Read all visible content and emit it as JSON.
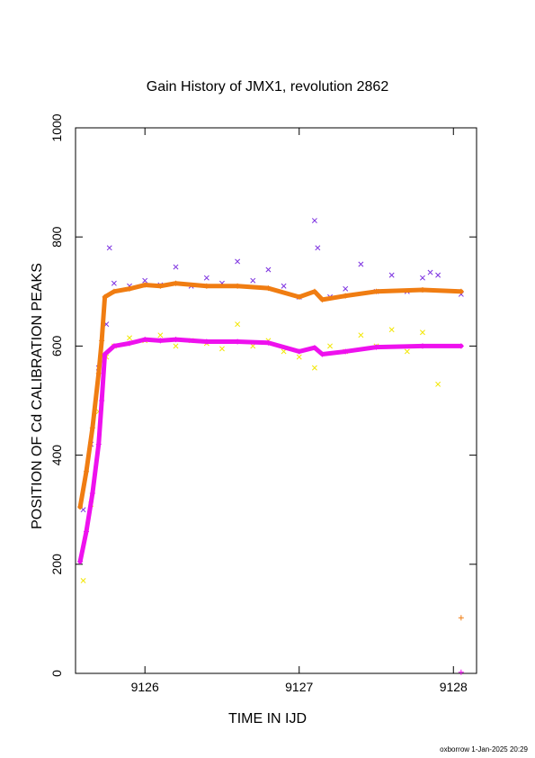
{
  "chart_data": {
    "type": "scatter",
    "title": "Gain History of JMX1, revolution 2862",
    "xlabel": "TIME IN IJD",
    "ylabel": "POSITION OF Cd CALIBRATION PEAKS",
    "xlim": [
      9125.55,
      9128.15
    ],
    "ylim": [
      0,
      1000
    ],
    "xticks": [
      9126,
      9127,
      9128
    ],
    "yticks": [
      0,
      200,
      400,
      600,
      800,
      1000
    ],
    "grid": false,
    "legend": "none",
    "series": [
      {
        "marker": "x",
        "color": "#7b2fe0",
        "points": [
          [
            9125.6,
            300
          ],
          [
            9125.65,
            420
          ],
          [
            9125.7,
            560
          ],
          [
            9125.75,
            640
          ],
          [
            9125.77,
            780
          ],
          [
            9125.8,
            715
          ],
          [
            9125.9,
            710
          ],
          [
            9126.0,
            720
          ],
          [
            9126.1,
            712
          ],
          [
            9126.2,
            745
          ],
          [
            9126.3,
            710
          ],
          [
            9126.4,
            725
          ],
          [
            9126.5,
            715
          ],
          [
            9126.6,
            755
          ],
          [
            9126.7,
            720
          ],
          [
            9126.8,
            740
          ],
          [
            9126.9,
            710
          ],
          [
            9127.0,
            690
          ],
          [
            9127.1,
            830
          ],
          [
            9127.12,
            780
          ],
          [
            9127.2,
            690
          ],
          [
            9127.3,
            705
          ],
          [
            9127.4,
            750
          ],
          [
            9127.5,
            700
          ],
          [
            9127.6,
            730
          ],
          [
            9127.7,
            700
          ],
          [
            9127.8,
            725
          ],
          [
            9127.85,
            735
          ],
          [
            9127.9,
            730
          ],
          [
            9128.05,
            695
          ]
        ]
      },
      {
        "marker": "x",
        "color": "#f2e600",
        "points": [
          [
            9125.6,
            170
          ],
          [
            9125.65,
            310
          ],
          [
            9125.7,
            480
          ],
          [
            9125.75,
            580
          ],
          [
            9125.8,
            600
          ],
          [
            9125.9,
            615
          ],
          [
            9126.0,
            610
          ],
          [
            9126.1,
            620
          ],
          [
            9126.2,
            600
          ],
          [
            9126.3,
            610
          ],
          [
            9126.4,
            605
          ],
          [
            9126.5,
            595
          ],
          [
            9126.6,
            640
          ],
          [
            9126.7,
            600
          ],
          [
            9126.8,
            610
          ],
          [
            9126.9,
            590
          ],
          [
            9127.0,
            580
          ],
          [
            9127.1,
            560
          ],
          [
            9127.2,
            600
          ],
          [
            9127.3,
            590
          ],
          [
            9127.4,
            620
          ],
          [
            9127.5,
            600
          ],
          [
            9127.6,
            630
          ],
          [
            9127.7,
            590
          ],
          [
            9127.8,
            625
          ],
          [
            9127.9,
            530
          ]
        ]
      },
      {
        "marker": "+",
        "color": "#f07d12",
        "line": [
          [
            9125.58,
            305
          ],
          [
            9125.62,
            370
          ],
          [
            9125.66,
            450
          ],
          [
            9125.7,
            550
          ],
          [
            9125.72,
            610
          ],
          [
            9125.74,
            690
          ],
          [
            9125.8,
            700
          ],
          [
            9125.9,
            705
          ],
          [
            9126.0,
            712
          ],
          [
            9126.1,
            710
          ],
          [
            9126.2,
            715
          ],
          [
            9126.4,
            710
          ],
          [
            9126.6,
            710
          ],
          [
            9126.8,
            706
          ],
          [
            9127.0,
            690
          ],
          [
            9127.1,
            700
          ],
          [
            9127.15,
            685
          ],
          [
            9127.3,
            692
          ],
          [
            9127.5,
            700
          ],
          [
            9127.8,
            703
          ],
          [
            9128.05,
            700
          ]
        ],
        "outliers": [
          [
            9128.05,
            102
          ]
        ]
      },
      {
        "marker": "+",
        "color": "#ee11ee",
        "line": [
          [
            9125.58,
            205
          ],
          [
            9125.62,
            260
          ],
          [
            9125.66,
            330
          ],
          [
            9125.7,
            420
          ],
          [
            9125.72,
            500
          ],
          [
            9125.74,
            585
          ],
          [
            9125.8,
            600
          ],
          [
            9125.9,
            605
          ],
          [
            9126.0,
            612
          ],
          [
            9126.1,
            610
          ],
          [
            9126.2,
            612
          ],
          [
            9126.4,
            608
          ],
          [
            9126.6,
            608
          ],
          [
            9126.8,
            606
          ],
          [
            9127.0,
            590
          ],
          [
            9127.1,
            597
          ],
          [
            9127.15,
            585
          ],
          [
            9127.3,
            590
          ],
          [
            9127.5,
            598
          ],
          [
            9127.8,
            600
          ],
          [
            9128.05,
            600
          ]
        ],
        "outliers": [
          [
            9128.05,
            2
          ]
        ]
      }
    ]
  },
  "footer": {
    "stamp": "oxborrow  1-Jan-2025 20:29"
  }
}
